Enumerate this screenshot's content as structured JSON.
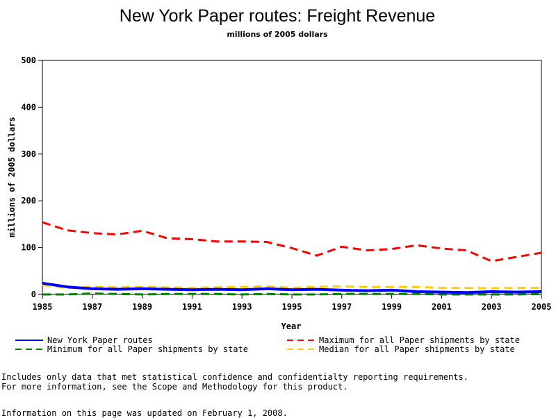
{
  "chart_data": {
    "type": "line",
    "title": "New York Paper routes: Freight Revenue",
    "subtitle": "millions of 2005 dollars",
    "xlabel": "Year",
    "ylabel": "millions of 2005 dollars",
    "xlim": [
      1985,
      2005
    ],
    "ylim": [
      0,
      500
    ],
    "x_ticks": [
      "1985",
      "1987",
      "1989",
      "1991",
      "1993",
      "1995",
      "1997",
      "1999",
      "2001",
      "2003",
      "2005"
    ],
    "y_ticks": [
      "0",
      "100",
      "200",
      "300",
      "400",
      "500"
    ],
    "x": [
      1985,
      1986,
      1987,
      1988,
      1989,
      1990,
      1991,
      1992,
      1993,
      1994,
      1995,
      1996,
      1997,
      1998,
      1999,
      2000,
      2001,
      2002,
      2003,
      2004,
      2005
    ],
    "series": [
      {
        "name": "New York Paper routes",
        "color": "#0000ff",
        "style": "solid",
        "values": [
          24,
          16,
          12,
          11,
          12,
          11,
          10,
          11,
          10,
          12,
          10,
          11,
          9,
          8,
          9,
          6,
          5,
          4,
          6,
          5,
          6
        ]
      },
      {
        "name": "Maximum for all Paper shipments by state",
        "color": "#ff0000",
        "style": "dashed",
        "values": [
          154,
          137,
          131,
          128,
          136,
          120,
          118,
          113,
          113,
          112,
          99,
          83,
          102,
          94,
          97,
          105,
          98,
          94,
          71,
          80,
          89
        ]
      },
      {
        "name": "Minimum for all Paper shipments by state",
        "color": "#008000",
        "style": "dashed",
        "values": [
          0,
          0,
          2,
          1,
          0,
          1,
          1,
          1,
          0,
          1,
          0,
          0,
          1,
          1,
          1,
          1,
          0,
          0,
          0,
          0,
          1
        ]
      },
      {
        "name": "Median for all Paper shipments by state",
        "color": "#ffcc00",
        "style": "dashed",
        "values": [
          20,
          14,
          16,
          15,
          16,
          15,
          14,
          15,
          16,
          17,
          14,
          16,
          17,
          16,
          16,
          16,
          14,
          14,
          13,
          14,
          14
        ]
      }
    ],
    "legend_position": "bottom",
    "grid": false
  },
  "notes": {
    "line1": "Includes only data that met statistical confidence and confidentialty reporting requirements.",
    "line2": "For more information, see the Scope and Methodology for this product.",
    "updated": "Information on this page was updated on February 1, 2008."
  }
}
